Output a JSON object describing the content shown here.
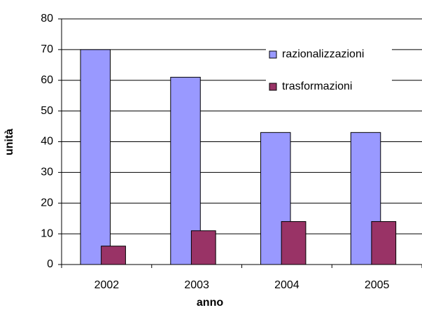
{
  "chart_data": {
    "type": "bar",
    "x_label": "anno",
    "y_label": "unità",
    "categories": [
      "2002",
      "2003",
      "2004",
      "2005"
    ],
    "series": [
      {
        "name": "razionalizzazioni",
        "color": "#9999ff",
        "values": [
          70,
          61,
          43,
          43
        ]
      },
      {
        "name": "trasformazioni",
        "color": "#993366",
        "values": [
          6,
          11,
          14,
          14
        ]
      }
    ],
    "ylim": [
      0,
      80
    ],
    "yticks": [
      0,
      10,
      20,
      30,
      40,
      50,
      60,
      70,
      80
    ],
    "grid": true,
    "legend": "upper-right"
  }
}
